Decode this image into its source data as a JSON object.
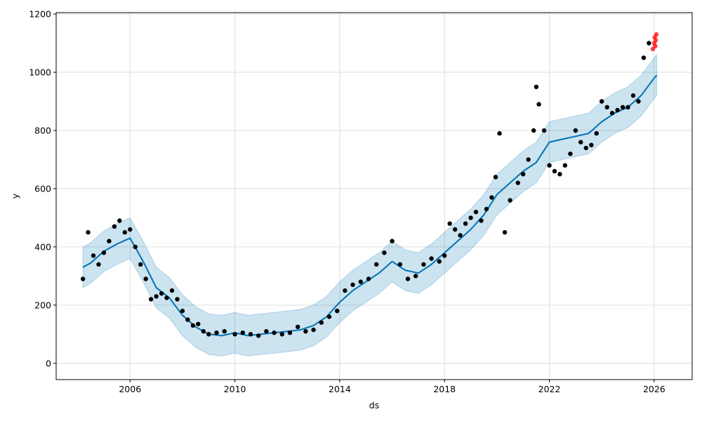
{
  "chart_data": {
    "type": "line",
    "title": "",
    "xlabel": "ds",
    "ylabel": "y",
    "xlim": [
      2003.18,
      2027.45
    ],
    "ylim": [
      -56,
      1205
    ],
    "grid": true,
    "legend": "none",
    "x_ticks": [
      2006,
      2010,
      2014,
      2018,
      2022,
      2026
    ],
    "x_tick_labels": [
      "2006",
      "2010",
      "2014",
      "2018",
      "2022",
      "2026"
    ],
    "y_ticks": [
      0,
      200,
      400,
      600,
      800,
      1000,
      1200
    ],
    "y_tick_labels": [
      "0",
      "200",
      "400",
      "600",
      "800",
      "1000",
      "1200"
    ],
    "colors": {
      "forecast_line": "#0072B2",
      "uncertainty_band": "#0072B2",
      "observed_points": "#000000",
      "recent_points": "#ff0000",
      "grid": "#dddddd"
    },
    "series": [
      {
        "role": "forecast",
        "x": [
          2004.2,
          2004.5,
          2005.0,
          2005.5,
          2006.0,
          2006.5,
          2007.0,
          2007.5,
          2008.0,
          2008.5,
          2009.0,
          2009.5,
          2010.0,
          2010.5,
          2011.0,
          2011.5,
          2012.0,
          2012.5,
          2013.0,
          2013.5,
          2014.0,
          2014.5,
          2015.0,
          2015.5,
          2016.0,
          2016.5,
          2017.0,
          2017.5,
          2018.0,
          2018.5,
          2019.0,
          2019.5,
          2020.0,
          2020.5,
          2021.0,
          2021.5,
          2022.0,
          2022.5,
          2023.0,
          2023.5,
          2024.0,
          2024.5,
          2025.0,
          2025.5,
          2026.0,
          2026.1
        ],
        "y": [
          330,
          345,
          385,
          410,
          430,
          350,
          260,
          225,
          165,
          125,
          100,
          95,
          105,
          95,
          100,
          105,
          110,
          115,
          130,
          160,
          210,
          250,
          280,
          310,
          350,
          320,
          310,
          340,
          380,
          420,
          460,
          510,
          580,
          620,
          660,
          690,
          760,
          770,
          780,
          790,
          830,
          860,
          880,
          920,
          980,
          990
        ],
        "lower": [
          260,
          275,
          315,
          340,
          360,
          280,
          190,
          155,
          95,
          55,
          30,
          25,
          35,
          25,
          30,
          35,
          40,
          45,
          60,
          90,
          140,
          180,
          210,
          240,
          280,
          250,
          240,
          270,
          310,
          350,
          390,
          440,
          510,
          550,
          590,
          620,
          690,
          700,
          710,
          720,
          760,
          790,
          810,
          850,
          910,
          920
        ],
        "upper": [
          400,
          415,
          455,
          480,
          500,
          420,
          330,
          295,
          235,
          195,
          170,
          165,
          175,
          165,
          170,
          175,
          180,
          185,
          200,
          230,
          280,
          320,
          350,
          380,
          420,
          390,
          380,
          410,
          450,
          490,
          530,
          580,
          650,
          690,
          730,
          760,
          830,
          840,
          850,
          860,
          900,
          930,
          950,
          990,
          1050,
          1060
        ]
      },
      {
        "role": "observed",
        "x": [
          2004.2,
          2004.4,
          2004.6,
          2004.8,
          2005.0,
          2005.2,
          2005.4,
          2005.6,
          2005.8,
          2006.0,
          2006.2,
          2006.4,
          2006.6,
          2006.8,
          2007.0,
          2007.2,
          2007.4,
          2007.6,
          2007.8,
          2008.0,
          2008.2,
          2008.4,
          2008.6,
          2008.8,
          2009.0,
          2009.3,
          2009.6,
          2010.0,
          2010.3,
          2010.6,
          2010.9,
          2011.2,
          2011.5,
          2011.8,
          2012.1,
          2012.4,
          2012.7,
          2013.0,
          2013.3,
          2013.6,
          2013.9,
          2014.2,
          2014.5,
          2014.8,
          2015.1,
          2015.4,
          2015.7,
          2016.0,
          2016.3,
          2016.6,
          2016.9,
          2017.2,
          2017.5,
          2017.8,
          2018.0,
          2018.2,
          2018.4,
          2018.6,
          2018.8,
          2019.0,
          2019.2,
          2019.4,
          2019.6,
          2019.8,
          2019.95,
          2020.1,
          2020.3,
          2020.5,
          2020.8,
          2021.0,
          2021.2,
          2021.4,
          2021.5,
          2021.6,
          2021.8,
          2022.0,
          2022.2,
          2022.4,
          2022.6,
          2022.8,
          2023.0,
          2023.2,
          2023.4,
          2023.6,
          2023.8,
          2024.0,
          2024.2,
          2024.4,
          2024.6,
          2024.8,
          2025.0,
          2025.2,
          2025.4,
          2025.6,
          2025.8
        ],
        "y": [
          290,
          450,
          370,
          340,
          380,
          420,
          470,
          490,
          450,
          460,
          400,
          340,
          290,
          220,
          230,
          240,
          225,
          250,
          220,
          180,
          150,
          130,
          135,
          110,
          100,
          105,
          110,
          100,
          105,
          100,
          95,
          110,
          105,
          100,
          105,
          125,
          110,
          115,
          140,
          160,
          180,
          250,
          270,
          280,
          290,
          340,
          380,
          420,
          340,
          290,
          300,
          340,
          360,
          350,
          370,
          480,
          460,
          440,
          480,
          500,
          520,
          490,
          530,
          570,
          640,
          790,
          450,
          560,
          620,
          650,
          700,
          800,
          950,
          890,
          800,
          680,
          660,
          650,
          680,
          720,
          800,
          760,
          740,
          750,
          790,
          900,
          880,
          860,
          870,
          880,
          880,
          920,
          900,
          1050,
          1100
        ],
        "size": 3.2
      },
      {
        "role": "recent",
        "x": [
          2025.95,
          2026.0,
          2026.02,
          2026.04,
          2026.06,
          2026.08
        ],
        "y": [
          1080,
          1100,
          1120,
          1090,
          1110,
          1130
        ],
        "size": 3.2
      }
    ]
  }
}
